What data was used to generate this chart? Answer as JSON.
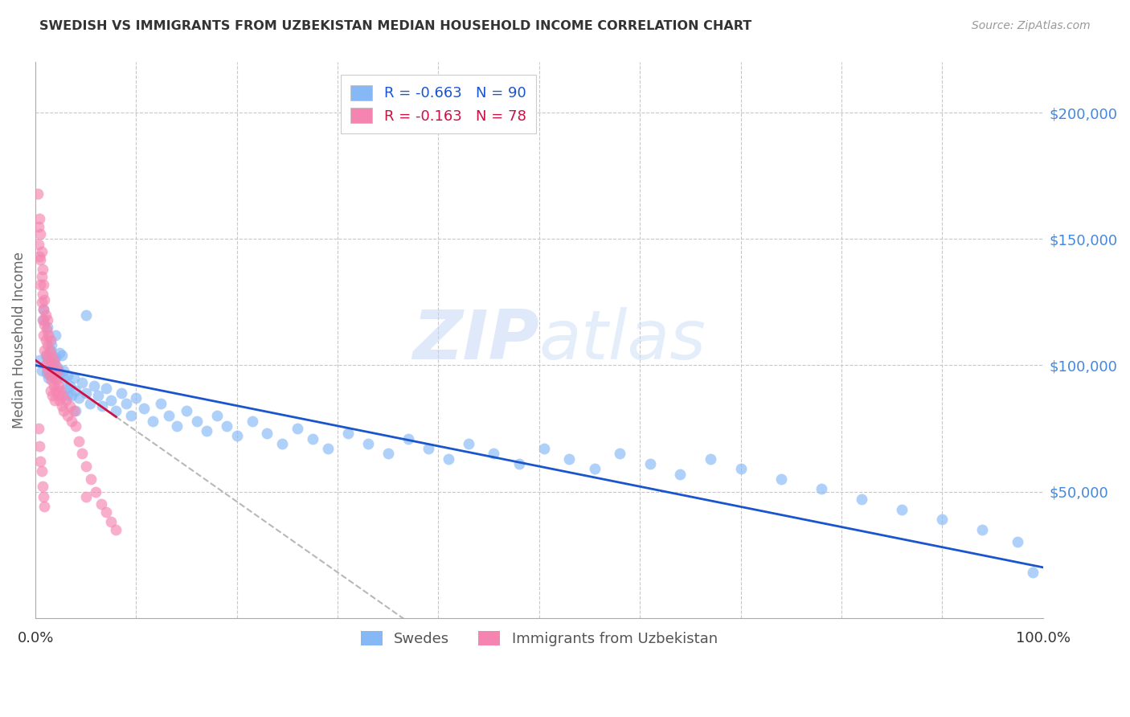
{
  "title": "SWEDISH VS IMMIGRANTS FROM UZBEKISTAN MEDIAN HOUSEHOLD INCOME CORRELATION CHART",
  "source": "Source: ZipAtlas.com",
  "ylabel": "Median Household Income",
  "ylim": [
    0,
    220000
  ],
  "xlim": [
    0.0,
    1.0
  ],
  "bg_color": "#ffffff",
  "grid_color": "#c8c8c8",
  "title_color": "#333333",
  "axis_label_color": "#666666",
  "ytick_color": "#4488dd",
  "swedes_color": "#85b8f5",
  "uzbek_color": "#f585b0",
  "swedes_line_color": "#1a55cc",
  "uzbek_line_color": "#cc1144",
  "uzbek_dashed_color": "#b8b8b8",
  "watermark_color": "#c5d8f5",
  "swedes_x": [
    0.004,
    0.006,
    0.008,
    0.01,
    0.011,
    0.012,
    0.013,
    0.014,
    0.015,
    0.016,
    0.017,
    0.018,
    0.019,
    0.02,
    0.021,
    0.022,
    0.024,
    0.026,
    0.028,
    0.03,
    0.032,
    0.034,
    0.036,
    0.038,
    0.04,
    0.043,
    0.046,
    0.05,
    0.054,
    0.058,
    0.062,
    0.066,
    0.07,
    0.075,
    0.08,
    0.085,
    0.09,
    0.095,
    0.1,
    0.108,
    0.116,
    0.124,
    0.132,
    0.14,
    0.15,
    0.16,
    0.17,
    0.18,
    0.19,
    0.2,
    0.215,
    0.23,
    0.245,
    0.26,
    0.275,
    0.29,
    0.31,
    0.33,
    0.35,
    0.37,
    0.39,
    0.41,
    0.43,
    0.455,
    0.48,
    0.505,
    0.53,
    0.555,
    0.58,
    0.61,
    0.64,
    0.67,
    0.7,
    0.74,
    0.78,
    0.82,
    0.86,
    0.9,
    0.94,
    0.975,
    0.008,
    0.012,
    0.016,
    0.02,
    0.024,
    0.028,
    0.032,
    0.04,
    0.05,
    0.99
  ],
  "swedes_y": [
    102000,
    98000,
    118000,
    104000,
    97000,
    103000,
    95000,
    100000,
    106000,
    99000,
    96000,
    101000,
    98000,
    103000,
    95000,
    99000,
    97000,
    104000,
    95000,
    91000,
    96000,
    92000,
    88000,
    95000,
    90000,
    87000,
    93000,
    89000,
    85000,
    92000,
    88000,
    84000,
    91000,
    86000,
    82000,
    89000,
    85000,
    80000,
    87000,
    83000,
    78000,
    85000,
    80000,
    76000,
    82000,
    78000,
    74000,
    80000,
    76000,
    72000,
    78000,
    73000,
    69000,
    75000,
    71000,
    67000,
    73000,
    69000,
    65000,
    71000,
    67000,
    63000,
    69000,
    65000,
    61000,
    67000,
    63000,
    59000,
    65000,
    61000,
    57000,
    63000,
    59000,
    55000,
    51000,
    47000,
    43000,
    39000,
    35000,
    30000,
    122000,
    115000,
    108000,
    112000,
    105000,
    98000,
    88000,
    82000,
    120000,
    18000
  ],
  "uzbek_x": [
    0.002,
    0.003,
    0.003,
    0.004,
    0.004,
    0.005,
    0.005,
    0.005,
    0.006,
    0.006,
    0.006,
    0.007,
    0.007,
    0.007,
    0.008,
    0.008,
    0.008,
    0.009,
    0.009,
    0.009,
    0.01,
    0.01,
    0.01,
    0.011,
    0.011,
    0.012,
    0.012,
    0.012,
    0.013,
    0.013,
    0.014,
    0.014,
    0.015,
    0.015,
    0.015,
    0.016,
    0.016,
    0.017,
    0.017,
    0.018,
    0.018,
    0.019,
    0.019,
    0.02,
    0.02,
    0.021,
    0.022,
    0.022,
    0.023,
    0.024,
    0.025,
    0.026,
    0.027,
    0.028,
    0.03,
    0.032,
    0.034,
    0.036,
    0.038,
    0.04,
    0.043,
    0.046,
    0.05,
    0.055,
    0.06,
    0.065,
    0.07,
    0.075,
    0.08,
    0.05,
    0.003,
    0.004,
    0.005,
    0.006,
    0.007,
    0.008,
    0.009
  ],
  "uzbek_y": [
    168000,
    155000,
    148000,
    158000,
    143000,
    152000,
    142000,
    132000,
    145000,
    135000,
    125000,
    138000,
    128000,
    118000,
    132000,
    122000,
    112000,
    126000,
    116000,
    106000,
    120000,
    110000,
    100000,
    114000,
    104000,
    118000,
    108000,
    98000,
    112000,
    102000,
    106000,
    96000,
    110000,
    100000,
    90000,
    104000,
    94000,
    98000,
    88000,
    102000,
    92000,
    96000,
    86000,
    100000,
    90000,
    94000,
    98000,
    88000,
    92000,
    86000,
    90000,
    84000,
    88000,
    82000,
    86000,
    80000,
    84000,
    78000,
    82000,
    76000,
    70000,
    65000,
    60000,
    55000,
    50000,
    45000,
    42000,
    38000,
    35000,
    48000,
    75000,
    68000,
    62000,
    58000,
    52000,
    48000,
    44000
  ]
}
